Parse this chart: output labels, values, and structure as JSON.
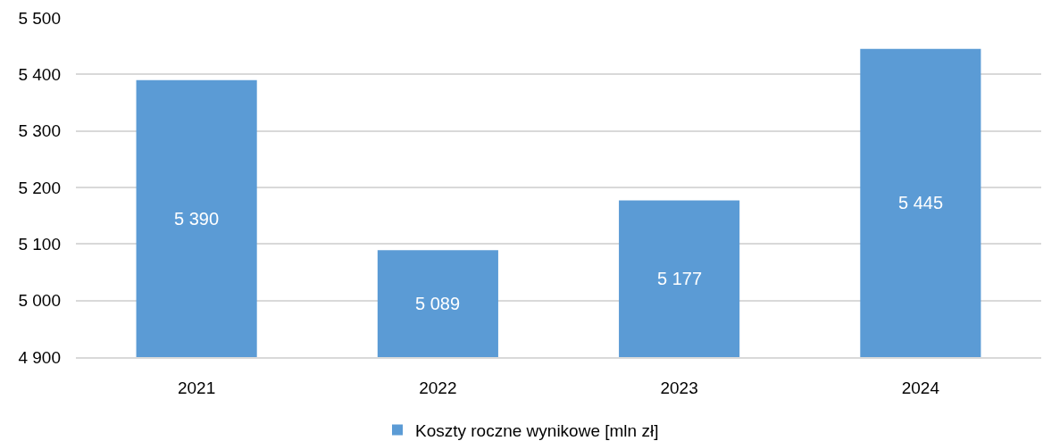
{
  "chart_data": {
    "type": "bar",
    "categories": [
      "2021",
      "2022",
      "2023",
      "2024"
    ],
    "series": [
      {
        "name": "Koszty roczne wynikowe [mln zł]",
        "color": "#5b9bd5",
        "values": [
          5390,
          5089,
          5177,
          5445
        ],
        "value_labels": [
          "5 390",
          "5 089",
          "5 177",
          "5 445"
        ]
      }
    ],
    "ylim": [
      4900,
      5500
    ],
    "yticks": [
      {
        "value": 4900,
        "label": "4 900"
      },
      {
        "value": 5000,
        "label": "5 000"
      },
      {
        "value": 5100,
        "label": "5 100"
      },
      {
        "value": 5200,
        "label": "5 200"
      },
      {
        "value": 5300,
        "label": "5 300"
      },
      {
        "value": 5400,
        "label": "5 400"
      },
      {
        "value": 5500,
        "label": "5 500"
      }
    ],
    "grid": "y",
    "legend": "bottom"
  }
}
